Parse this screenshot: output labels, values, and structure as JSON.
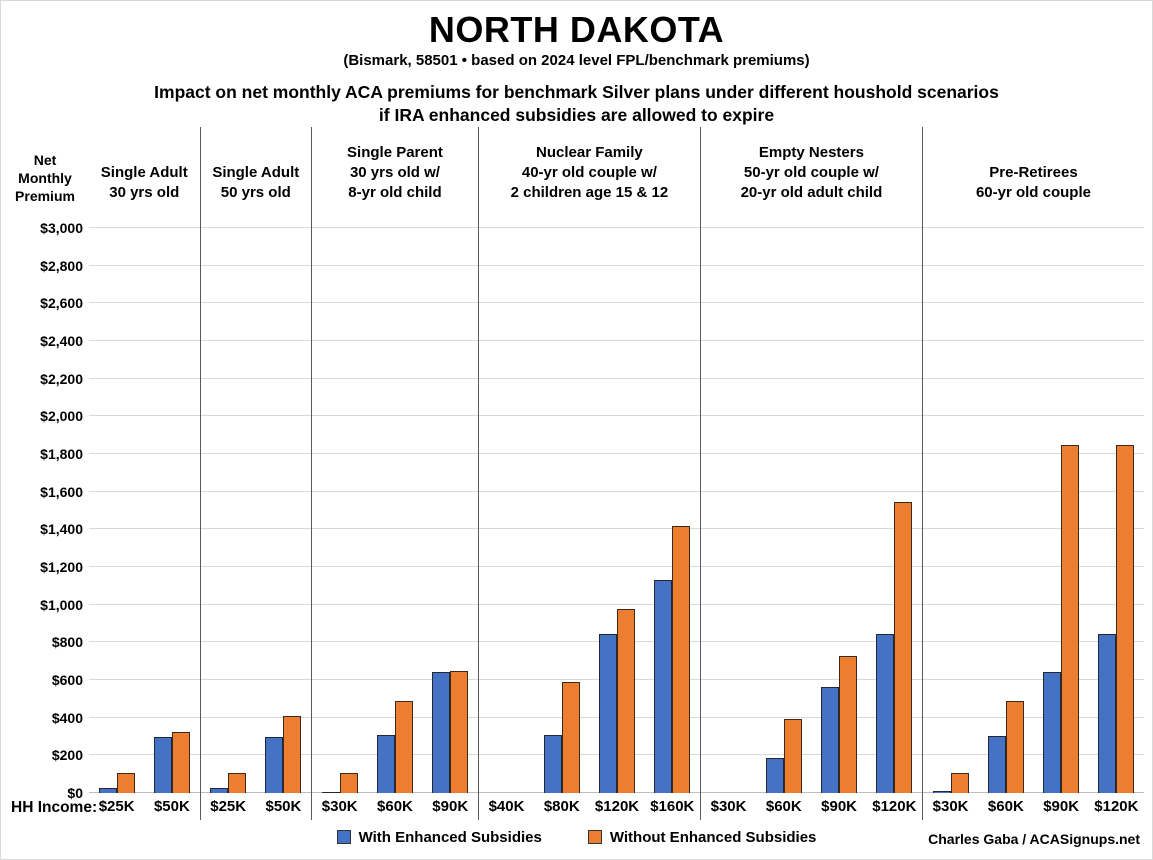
{
  "title": "NORTH DAKOTA",
  "subtitle": "(Bismark, 58501 • based on 2024 level FPL/benchmark premiums)",
  "heading_line1": "Impact on net monthly ACA premiums for benchmark Silver plans under different houshold scenarios",
  "heading_line2": "if IRA enhanced subsidies are allowed to expire",
  "hh_income_label": "HH Income:",
  "credit": "Charles Gaba / ACASignups.net",
  "y_axis_title_lines": [
    "Net",
    "Monthly",
    "Premium"
  ],
  "legend": {
    "items": [
      {
        "label": "With Enhanced Subsidies",
        "color": "#4472C4"
      },
      {
        "label": "Without Enhanced Subsidies",
        "color": "#ED7D31"
      }
    ]
  },
  "chart_data": {
    "type": "bar",
    "title": "Impact on net monthly ACA premiums for benchmark Silver plans under different houshold scenarios if IRA enhanced subsidies are allowed to expire",
    "ylabel": "Net Monthly Premium",
    "xlabel": "HH Income",
    "ylim": [
      0,
      3000
    ],
    "ytick_step": 200,
    "yticks": [
      "$0",
      "$200",
      "$400",
      "$600",
      "$800",
      "$1,000",
      "$1,200",
      "$1,400",
      "$1,600",
      "$1,800",
      "$2,000",
      "$2,200",
      "$2,400",
      "$2,600",
      "$2,800",
      "$3,000"
    ],
    "grid": true,
    "legend_position": "bottom",
    "series_names": [
      "With Enhanced Subsidies",
      "Without Enhanced Subsidies"
    ],
    "colors": {
      "with": "#4472C4",
      "without": "#ED7D31"
    },
    "groups": [
      {
        "title_lines": [
          "Single Adult",
          "30 yrs old"
        ],
        "incomes": [
          "$25K",
          "$50K"
        ],
        "with_enhanced": [
          25,
          300
        ],
        "without_enhanced": [
          105,
          325
        ]
      },
      {
        "title_lines": [
          "Single Adult",
          "50 yrs old"
        ],
        "incomes": [
          "$25K",
          "$50K"
        ],
        "with_enhanced": [
          25,
          300
        ],
        "without_enhanced": [
          105,
          410
        ]
      },
      {
        "title_lines": [
          "Single Parent",
          "30 yrs old w/",
          "8-yr old child"
        ],
        "incomes": [
          "$30K",
          "$60K",
          "$90K"
        ],
        "with_enhanced": [
          5,
          310,
          640
        ],
        "without_enhanced": [
          105,
          490,
          650
        ]
      },
      {
        "title_lines": [
          "Nuclear Family",
          "40-yr old couple w/",
          "2 children age 15 & 12"
        ],
        "incomes": [
          "$40K",
          "$80K",
          "$120K",
          "$160K"
        ],
        "with_enhanced": [
          0,
          310,
          845,
          1130
        ],
        "without_enhanced": [
          0,
          590,
          975,
          1420
        ]
      },
      {
        "title_lines": [
          "Empty Nesters",
          "50-yr old couple w/",
          "20-yr old adult child"
        ],
        "incomes": [
          "$30K",
          "$60K",
          "$90K",
          "$120K"
        ],
        "with_enhanced": [
          0,
          185,
          565,
          845
        ],
        "without_enhanced": [
          0,
          395,
          730,
          1545
        ]
      },
      {
        "title_lines": [
          "Pre-Retirees",
          "60-yr old couple"
        ],
        "incomes": [
          "$30K",
          "$60K",
          "$90K",
          "$120K"
        ],
        "with_enhanced": [
          10,
          305,
          640,
          845
        ],
        "without_enhanced": [
          105,
          490,
          1850,
          1850
        ]
      }
    ]
  }
}
